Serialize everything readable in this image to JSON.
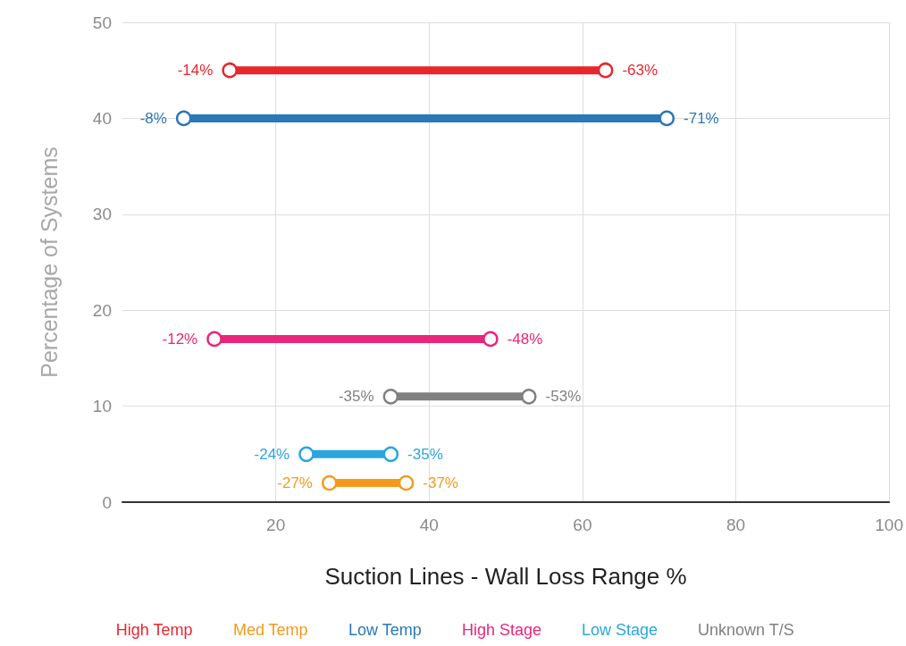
{
  "chart_data": {
    "type": "line",
    "orientation": "horizontal",
    "xlabel": "Suction Lines - Wall Loss Range %",
    "ylabel": "Percentage of Systems",
    "xlim": [
      0,
      -100
    ],
    "xticks": [
      {
        "value": -20,
        "label": "20"
      },
      {
        "value": -40,
        "label": "40"
      },
      {
        "value": -60,
        "label": "60"
      },
      {
        "value": -80,
        "label": "80"
      },
      {
        "value": -100,
        "label": "100"
      }
    ],
    "ylim": [
      0,
      50
    ],
    "yticks": [
      0,
      10,
      20,
      30,
      40,
      50
    ],
    "grid": true,
    "legend": "bottom",
    "marker": "circle",
    "line_style": "solid",
    "series": [
      {
        "name": "High Temp",
        "color": "#e8262d",
        "x": [
          45,
          45
        ],
        "values": [
          -14,
          -63
        ],
        "value_labels": [
          "-14%",
          "-63%"
        ]
      },
      {
        "name": "Med Temp",
        "color": "#f39a1e",
        "x": [
          2,
          2
        ],
        "values": [
          -27,
          -37
        ],
        "value_labels": [
          "-27%",
          "-37%"
        ]
      },
      {
        "name": "Low Temp",
        "color": "#2a78b8",
        "x": [
          40,
          40
        ],
        "values": [
          -8,
          -71
        ],
        "value_labels": [
          "-8%",
          "-71%"
        ]
      },
      {
        "name": "High Stage",
        "color": "#e8267a",
        "x": [
          17,
          17
        ],
        "values": [
          -12,
          -48
        ],
        "value_labels": [
          "-12%",
          "-48%"
        ]
      },
      {
        "name": "Low Stage",
        "color": "#2aa6dc",
        "x": [
          5,
          5
        ],
        "values": [
          -24,
          -35
        ],
        "value_labels": [
          "-24%",
          "-35%"
        ]
      },
      {
        "name": "Unknown T/S",
        "color": "#808080",
        "x": [
          11,
          11
        ],
        "values": [
          -35,
          -53
        ],
        "value_labels": [
          "-35%",
          "-53%"
        ]
      }
    ]
  }
}
